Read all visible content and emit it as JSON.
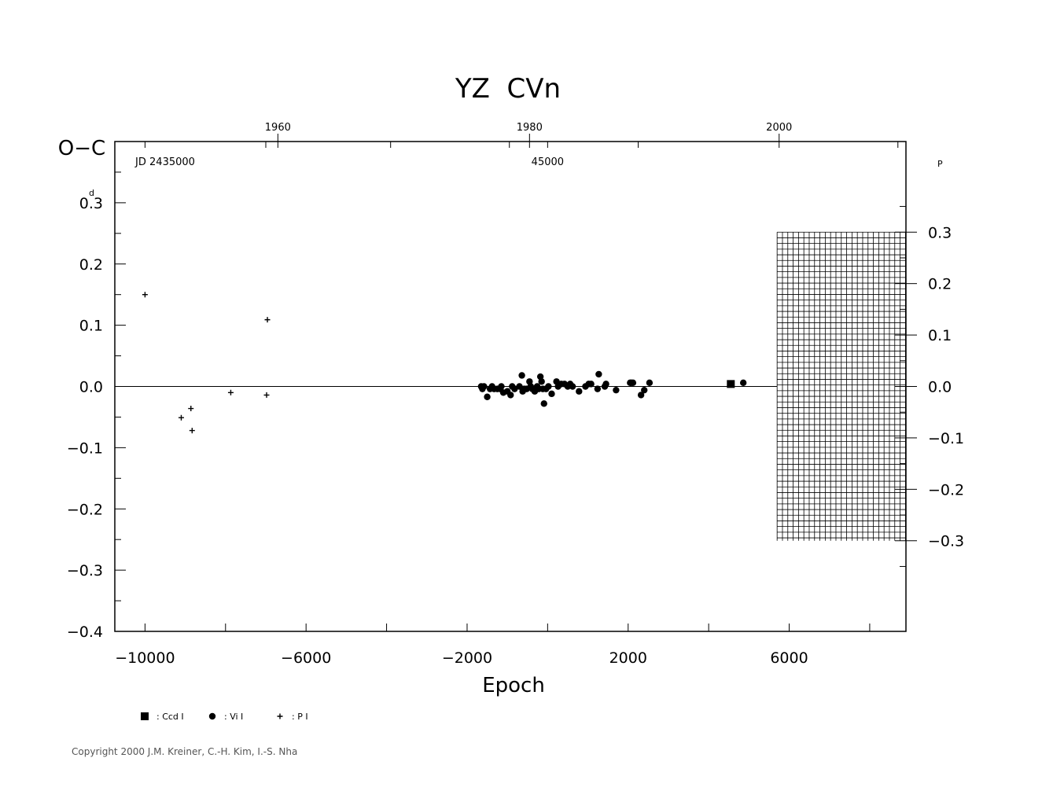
{
  "chart_data": {
    "type": "scatter",
    "title": "YZ  CVn",
    "xlabel": "Epoch",
    "ylabel": "O−C",
    "y_unit_left": "d",
    "y_unit_right": "P",
    "xlim": [
      -10750,
      8900
    ],
    "ylim": [
      -0.4,
      0.4
    ],
    "x_ticks": [
      -10000,
      -6000,
      -2000,
      2000,
      6000
    ],
    "x_tick_labels": [
      "−10000",
      "−6000",
      "−2000",
      "2000",
      "6000"
    ],
    "y_ticks": [
      0.3,
      0.2,
      0.1,
      0.0,
      -0.1,
      -0.2,
      -0.3,
      -0.4
    ],
    "y_tick_labels": [
      "0.3",
      "0.2",
      "0.1",
      "0.0",
      "−0.1",
      "−0.2",
      "−0.3",
      "−0.4"
    ],
    "right_ticks": [
      0.3,
      0.2,
      0.1,
      0.0,
      -0.1,
      -0.2,
      -0.3
    ],
    "right_tick_labels": [
      "0.3",
      "0.2",
      "0.1",
      "0.0",
      "−0.1",
      "−0.2",
      "−0.3"
    ],
    "right_scale_per_left": 1.1905,
    "top_year_ticks": [
      {
        "x": -6700,
        "label": "1960"
      },
      {
        "x": -450,
        "label": "1980"
      },
      {
        "x": 5750,
        "label": "2000"
      }
    ],
    "top_jd_ticks": [
      {
        "x": -9500,
        "label": "JD  2435000"
      },
      {
        "x": 0,
        "label": "45000"
      }
    ],
    "grid": "hatched region right of epoch 5700, O-C from -0.3 to 0.3 (right scale)",
    "legend": [
      {
        "marker": "square",
        "label": ": Ccd  I"
      },
      {
        "marker": "circle",
        "label": ": Vi  I"
      },
      {
        "marker": "plus",
        "label": ": P  I"
      }
    ],
    "series": [
      {
        "name": "Ccd I",
        "marker": "square",
        "points": [
          [
            4550,
            0.004
          ]
        ]
      },
      {
        "name": "Vi I",
        "marker": "circle",
        "points": [
          [
            -1650,
            0.0
          ],
          [
            -1620,
            -0.004
          ],
          [
            -1580,
            0.0
          ],
          [
            -1500,
            -0.017
          ],
          [
            -1430,
            -0.004
          ],
          [
            -1380,
            0.0
          ],
          [
            -1330,
            -0.004
          ],
          [
            -1250,
            -0.004
          ],
          [
            -1180,
            -0.004
          ],
          [
            -1150,
            0.0
          ],
          [
            -1100,
            -0.01
          ],
          [
            -1000,
            -0.008
          ],
          [
            -920,
            -0.014
          ],
          [
            -880,
            0.0
          ],
          [
            -820,
            -0.004
          ],
          [
            -700,
            0.0
          ],
          [
            -640,
            0.018
          ],
          [
            -620,
            -0.008
          ],
          [
            -580,
            -0.004
          ],
          [
            -520,
            -0.004
          ],
          [
            -450,
            0.008
          ],
          [
            -420,
            0.0
          ],
          [
            -380,
            -0.004
          ],
          [
            -320,
            -0.008
          ],
          [
            -260,
            0.0
          ],
          [
            -220,
            -0.004
          ],
          [
            -180,
            0.016
          ],
          [
            -150,
            0.008
          ],
          [
            -120,
            -0.004
          ],
          [
            -90,
            -0.028
          ],
          [
            -40,
            -0.004
          ],
          [
            20,
            0.0
          ],
          [
            100,
            -0.012
          ],
          [
            220,
            0.008
          ],
          [
            260,
            0.0
          ],
          [
            340,
            0.004
          ],
          [
            420,
            0.004
          ],
          [
            500,
            0.0
          ],
          [
            560,
            0.004
          ],
          [
            620,
            0.0
          ],
          [
            780,
            -0.008
          ],
          [
            940,
            0.0
          ],
          [
            1020,
            0.004
          ],
          [
            1080,
            0.004
          ],
          [
            1240,
            -0.004
          ],
          [
            1270,
            0.02
          ],
          [
            1420,
            0.0
          ],
          [
            1450,
            0.004
          ],
          [
            1700,
            -0.006
          ],
          [
            2050,
            0.006
          ],
          [
            2080,
            0.006
          ],
          [
            2120,
            0.006
          ],
          [
            2320,
            -0.014
          ],
          [
            2400,
            -0.006
          ],
          [
            2530,
            0.006
          ],
          [
            4860,
            0.006
          ]
        ]
      },
      {
        "name": "P I",
        "marker": "plus",
        "points": [
          [
            -10000,
            0.15
          ],
          [
            -9100,
            -0.051
          ],
          [
            -8860,
            -0.036
          ],
          [
            -8830,
            -0.072
          ],
          [
            -7870,
            -0.01
          ],
          [
            -6960,
            0.109
          ],
          [
            -6980,
            -0.014
          ]
        ]
      }
    ]
  },
  "copyright": "Copyright 2000 J.M. Kreiner, C.-H. Kim, I.-S. Nha"
}
